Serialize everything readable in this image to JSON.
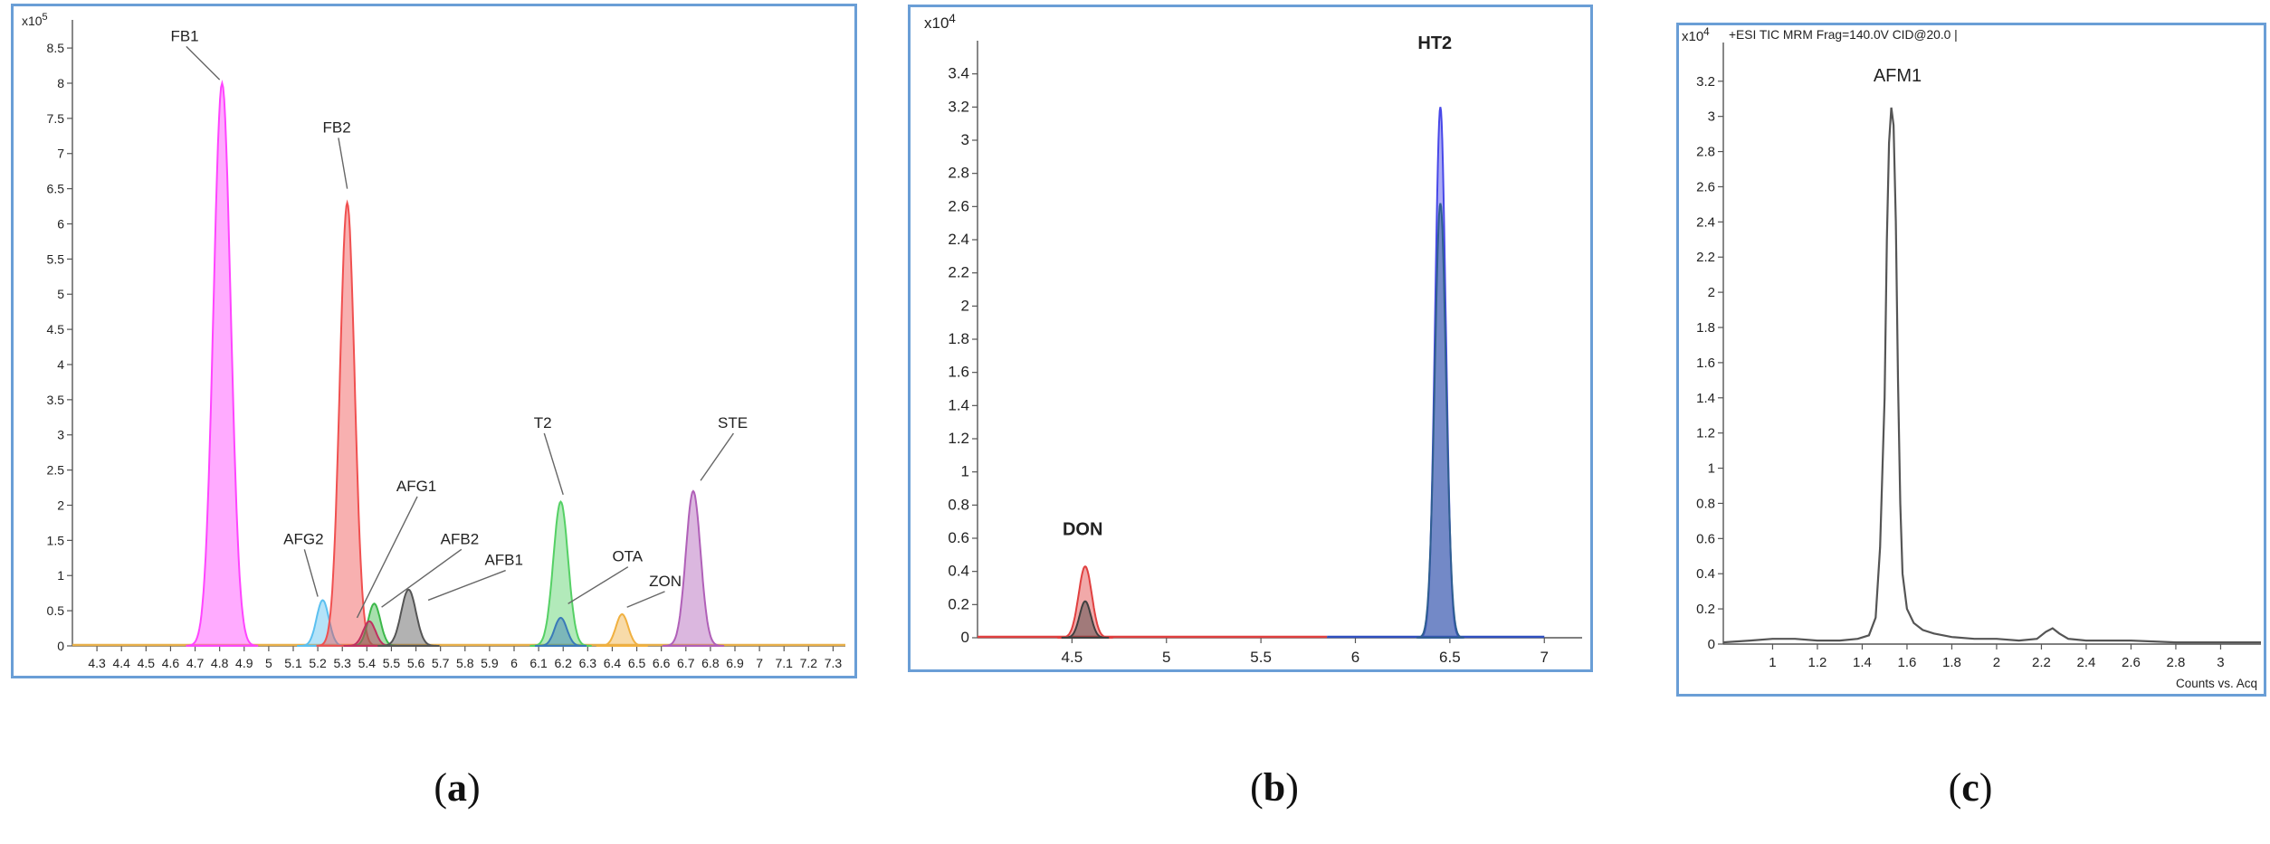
{
  "panels": [
    {
      "caption_open": "(",
      "caption_letter": "a",
      "caption_close": ")",
      "chart_data": {
        "type": "line",
        "scale_label": "x10",
        "scale_exponent": "5",
        "xlim": [
          4.2,
          7.35
        ],
        "ylim": [
          0,
          8.9
        ],
        "x_ticks": [
          4.3,
          4.4,
          4.5,
          4.6,
          4.7,
          4.8,
          4.9,
          5,
          5.1,
          5.2,
          5.3,
          5.4,
          5.5,
          5.6,
          5.7,
          5.8,
          5.9,
          6,
          6.1,
          6.2,
          6.3,
          6.4,
          6.5,
          6.6,
          6.7,
          6.8,
          6.9,
          7,
          7.1,
          7.2,
          7.3
        ],
        "x_tick_labels": [
          "4.3",
          "4.4",
          "4.5",
          "4.6",
          "4.7",
          "4.8",
          "4.9",
          "5",
          "5.1",
          "5.2",
          "5.3",
          "5.4",
          "5.5",
          "5.6",
          "5.7",
          "5.8",
          "5.9",
          "6",
          "6.1",
          "6.2",
          "6.3",
          "6.4",
          "6.5",
          "6.6",
          "6.7",
          "6.8",
          "6.9",
          "7",
          "7.1",
          "7.2",
          "7.3"
        ],
        "y_ticks": [
          0,
          0.5,
          1,
          1.5,
          2,
          2.5,
          3,
          3.5,
          4,
          4.5,
          5,
          5.5,
          6,
          6.5,
          7,
          7.5,
          8,
          8.5
        ],
        "y_tick_labels": [
          "0",
          "0.5",
          "1",
          "1.5",
          "2",
          "2.5",
          "3",
          "3.5",
          "4",
          "4.5",
          "5",
          "5.5",
          "6",
          "6.5",
          "7",
          "7.5",
          "8",
          "8.5"
        ],
        "baseline": {
          "color": "#e8b04a",
          "x": [
            4.2,
            7.35
          ]
        },
        "series": [
          {
            "name": "FB1",
            "peak_x": 4.81,
            "peak_y": 8.0,
            "width": 0.035,
            "color": "#ff44ff"
          },
          {
            "name": "AFG2",
            "peak_x": 5.22,
            "peak_y": 0.65,
            "width": 0.025,
            "color": "#5bc0f0"
          },
          {
            "name": "FB2",
            "peak_x": 5.32,
            "peak_y": 6.3,
            "width": 0.03,
            "color": "#f05050"
          },
          {
            "name": "AFG1",
            "peak_x": 5.43,
            "peak_y": 0.6,
            "width": 0.025,
            "color": "#3cb84a"
          },
          {
            "name": "AFB2",
            "peak_x": 5.41,
            "peak_y": 0.35,
            "width": 0.025,
            "color": "#c03060"
          },
          {
            "name": "AFB1",
            "peak_x": 5.57,
            "peak_y": 0.8,
            "width": 0.03,
            "color": "#555555"
          },
          {
            "name": "T2",
            "peak_x": 6.19,
            "peak_y": 2.05,
            "width": 0.03,
            "color": "#55d065"
          },
          {
            "name": "OTA",
            "peak_x": 6.19,
            "peak_y": 0.4,
            "width": 0.025,
            "color": "#3a7ab8"
          },
          {
            "name": "ZON",
            "peak_x": 6.44,
            "peak_y": 0.45,
            "width": 0.025,
            "color": "#f0b040"
          },
          {
            "name": "STE",
            "peak_x": 6.73,
            "peak_y": 2.2,
            "width": 0.03,
            "color": "#b060b8"
          }
        ],
        "annotations": [
          {
            "text": "FB1",
            "x": 4.6,
            "y": 8.6,
            "to_x": 4.8,
            "to_y": 8.05
          },
          {
            "text": "FB2",
            "x": 5.22,
            "y": 7.3,
            "to_x": 5.32,
            "to_y": 6.5
          },
          {
            "text": "AFG2",
            "x": 5.06,
            "y": 1.45,
            "to_x": 5.2,
            "to_y": 0.7
          },
          {
            "text": "AFG1",
            "x": 5.52,
            "y": 2.2,
            "to_x": 5.36,
            "to_y": 0.4
          },
          {
            "text": "AFB2",
            "x": 5.7,
            "y": 1.45,
            "to_x": 5.46,
            "to_y": 0.55
          },
          {
            "text": "AFB1",
            "x": 5.88,
            "y": 1.15,
            "to_x": 5.65,
            "to_y": 0.65
          },
          {
            "text": "T2",
            "x": 6.08,
            "y": 3.1,
            "to_x": 6.2,
            "to_y": 2.15
          },
          {
            "text": "OTA",
            "x": 6.4,
            "y": 1.2,
            "to_x": 6.22,
            "to_y": 0.6
          },
          {
            "text": "ZON",
            "x": 6.55,
            "y": 0.85,
            "to_x": 6.46,
            "to_y": 0.55
          },
          {
            "text": "STE",
            "x": 6.83,
            "y": 3.1,
            "to_x": 6.76,
            "to_y": 2.35
          }
        ]
      }
    },
    {
      "caption_open": "(",
      "caption_letter": "b",
      "caption_close": ")",
      "chart_data": {
        "type": "line",
        "scale_label": "x10",
        "scale_exponent": "4",
        "xlim": [
          4.0,
          7.2
        ],
        "ylim": [
          0,
          3.6
        ],
        "x_ticks": [
          4.5,
          5,
          5.5,
          6,
          6.5,
          7
        ],
        "x_tick_labels": [
          "4.5",
          "5",
          "5.5",
          "6",
          "6.5",
          "7"
        ],
        "y_ticks": [
          0,
          0.2,
          0.4,
          0.6,
          0.8,
          1,
          1.2,
          1.4,
          1.6,
          1.8,
          2,
          2.2,
          2.4,
          2.6,
          2.8,
          3,
          3.2,
          3.4
        ],
        "y_tick_labels": [
          "0",
          "0.2",
          "0.4",
          "0.6",
          "0.8",
          "1",
          "1.2",
          "1.4",
          "1.6",
          "1.8",
          "2",
          "2.2",
          "2.4",
          "2.6",
          "2.8",
          "3",
          "3.2",
          "3.4"
        ],
        "baselines": [
          {
            "color": "#e04040",
            "x": [
              4.0,
              5.85
            ]
          },
          {
            "color": "#3050c0",
            "x": [
              5.85,
              7.0
            ]
          }
        ],
        "series": [
          {
            "name": "DON",
            "peak_x": 4.57,
            "peak_y": 0.43,
            "width": 0.035,
            "color": "#e04040"
          },
          {
            "name": "",
            "peak_x": 4.57,
            "peak_y": 0.22,
            "width": 0.03,
            "color": "#404040"
          },
          {
            "name": "HT2",
            "peak_x": 6.45,
            "peak_y": 3.2,
            "width": 0.028,
            "color": "#4848e8"
          },
          {
            "name": "",
            "peak_x": 6.45,
            "peak_y": 2.62,
            "width": 0.03,
            "color": "#2f5f90"
          }
        ],
        "annotations": [
          {
            "text": "DON",
            "x": 4.45,
            "y": 0.62
          },
          {
            "text": "HT2",
            "x": 6.33,
            "y": 3.55
          }
        ]
      }
    },
    {
      "caption_open": "(",
      "caption_letter": "c",
      "caption_close": ")",
      "chart_data": {
        "type": "line",
        "scale_label": "x10",
        "scale_exponent": "4",
        "header_text": "+ESI TIC MRM Frag=140.0V CID@20.0 |",
        "xlim": [
          0.78,
          3.18
        ],
        "ylim": [
          0,
          3.42
        ],
        "x_ticks": [
          1,
          1.2,
          1.4,
          1.6,
          1.8,
          2,
          2.2,
          2.4,
          2.6,
          2.8,
          3
        ],
        "x_tick_labels": [
          "1",
          "1.2",
          "1.4",
          "1.6",
          "1.8",
          "2",
          "2.2",
          "2.4",
          "2.6",
          "2.8",
          "3"
        ],
        "x_axis_caption": "Counts vs. Acq",
        "y_ticks": [
          0,
          0.2,
          0.4,
          0.6,
          0.8,
          1,
          1.2,
          1.4,
          1.6,
          1.8,
          2,
          2.2,
          2.4,
          2.6,
          2.8,
          3,
          3.2
        ],
        "y_tick_labels": [
          "0",
          "0.2",
          "0.4",
          "0.6",
          "0.8",
          "1",
          "1.2",
          "1.4",
          "1.6",
          "1.8",
          "2",
          "2.2",
          "2.4",
          "2.6",
          "2.8",
          "3",
          "3.2"
        ],
        "series": [
          {
            "name": "AFM1",
            "color": "#555555",
            "x": [
              0.78,
              0.9,
              1.0,
              1.1,
              1.2,
              1.3,
              1.38,
              1.43,
              1.46,
              1.48,
              1.5,
              1.51,
              1.52,
              1.53,
              1.54,
              1.55,
              1.56,
              1.57,
              1.58,
              1.6,
              1.63,
              1.67,
              1.72,
              1.8,
              1.9,
              2.0,
              2.1,
              2.18,
              2.22,
              2.25,
              2.28,
              2.32,
              2.4,
              2.5,
              2.6,
              2.8,
              3.0,
              3.18
            ],
            "y": [
              0.01,
              0.02,
              0.03,
              0.03,
              0.02,
              0.02,
              0.03,
              0.05,
              0.15,
              0.55,
              1.4,
              2.3,
              2.85,
              3.05,
              2.95,
              2.4,
              1.5,
              0.8,
              0.4,
              0.2,
              0.12,
              0.08,
              0.06,
              0.04,
              0.03,
              0.03,
              0.02,
              0.03,
              0.07,
              0.09,
              0.06,
              0.03,
              0.02,
              0.02,
              0.02,
              0.01,
              0.01,
              0.01
            ]
          }
        ],
        "annotations": [
          {
            "text": "AFM1",
            "x": 1.45,
            "y": 3.2
          }
        ]
      }
    }
  ]
}
